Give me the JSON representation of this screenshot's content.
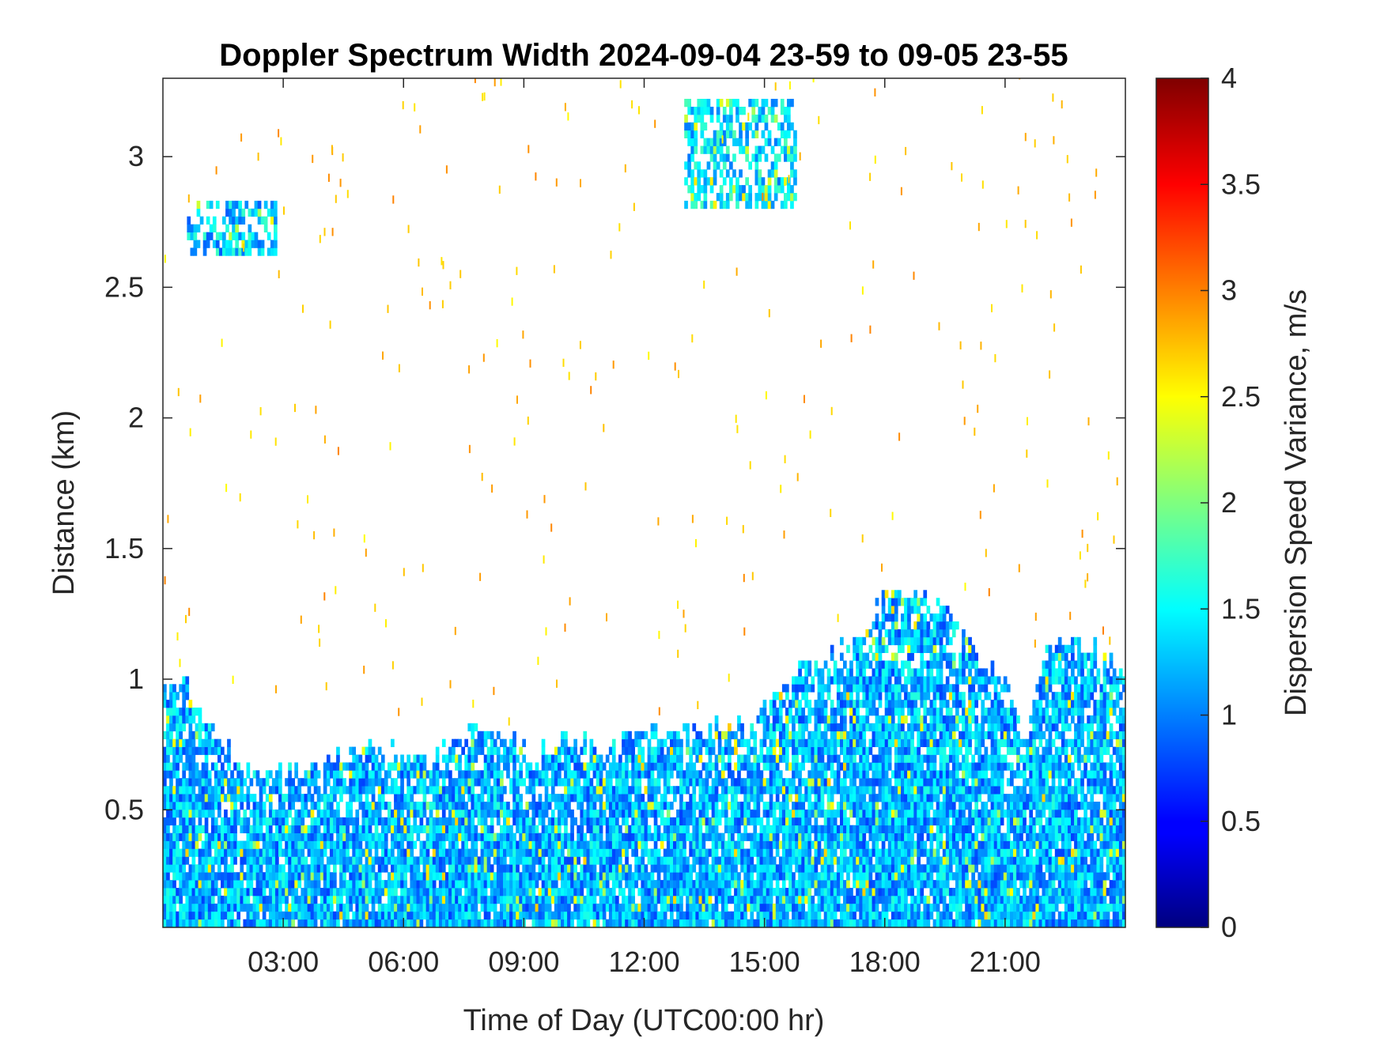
{
  "chart_data": {
    "type": "heatmap",
    "title": "Doppler Spectrum Width 2024-09-04 23-59 to 09-05 23-55",
    "xlabel": "Time of Day (UTC00:00 hr)",
    "ylabel": "Distance (km)",
    "xlim": [
      0,
      24
    ],
    "ylim": [
      0.05,
      3.3
    ],
    "x_ticks": [
      {
        "value": 3,
        "label": "03:00"
      },
      {
        "value": 6,
        "label": "06:00"
      },
      {
        "value": 9,
        "label": "09:00"
      },
      {
        "value": 12,
        "label": "12:00"
      },
      {
        "value": 15,
        "label": "15:00"
      },
      {
        "value": 18,
        "label": "18:00"
      },
      {
        "value": 21,
        "label": "21:00"
      }
    ],
    "y_ticks": [
      {
        "value": 0.5,
        "label": "0.5"
      },
      {
        "value": 1,
        "label": "1"
      },
      {
        "value": 1.5,
        "label": "1.5"
      },
      {
        "value": 2,
        "label": "2"
      },
      {
        "value": 2.5,
        "label": "2.5"
      },
      {
        "value": 3,
        "label": "3"
      }
    ],
    "colorbar": {
      "label": "Dispersion Speed Variance, m/s",
      "range": [
        0,
        4
      ],
      "colormap": "jet",
      "ticks": [
        {
          "value": 0,
          "label": "0"
        },
        {
          "value": 0.5,
          "label": "0.5"
        },
        {
          "value": 1,
          "label": "1"
        },
        {
          "value": 1.5,
          "label": "1.5"
        },
        {
          "value": 2,
          "label": "2"
        },
        {
          "value": 2.5,
          "label": "2.5"
        },
        {
          "value": 3,
          "label": "3"
        },
        {
          "value": 3.5,
          "label": "3.5"
        },
        {
          "value": 4,
          "label": "4"
        }
      ]
    },
    "boundary_layer_top_km": [
      [
        0.0,
        0.95
      ],
      [
        0.5,
        1.0
      ],
      [
        1.0,
        0.82
      ],
      [
        1.5,
        0.72
      ],
      [
        2.0,
        0.65
      ],
      [
        3.0,
        0.62
      ],
      [
        4.0,
        0.68
      ],
      [
        5.0,
        0.72
      ],
      [
        6.0,
        0.7
      ],
      [
        7.0,
        0.72
      ],
      [
        8.0,
        0.82
      ],
      [
        9.0,
        0.7
      ],
      [
        10.0,
        0.75
      ],
      [
        11.0,
        0.72
      ],
      [
        12.0,
        0.78
      ],
      [
        13.0,
        0.8
      ],
      [
        14.0,
        0.82
      ],
      [
        14.5,
        0.78
      ],
      [
        15.0,
        0.9
      ],
      [
        16.0,
        1.05
      ],
      [
        17.0,
        1.1
      ],
      [
        17.5,
        1.2
      ],
      [
        18.0,
        1.32
      ],
      [
        19.0,
        1.3
      ],
      [
        20.0,
        1.15
      ],
      [
        21.0,
        0.95
      ],
      [
        21.5,
        0.75
      ],
      [
        22.0,
        1.15
      ],
      [
        23.0,
        1.12
      ],
      [
        24.0,
        1.0
      ]
    ],
    "clusters": [
      {
        "t": [
          0.6,
          2.8
        ],
        "z": [
          2.62,
          2.82
        ],
        "center": 1.3
      },
      {
        "t": [
          13.0,
          15.8
        ],
        "z": [
          2.8,
          3.2
        ],
        "center": 1.4
      }
    ]
  }
}
